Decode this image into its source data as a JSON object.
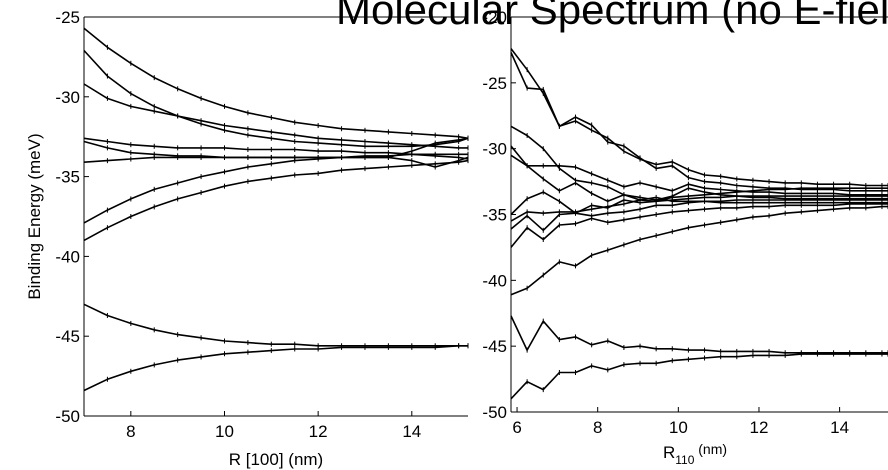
{
  "title": "Molecular Spectrum (no E-field)",
  "chart_data": [
    {
      "type": "line",
      "xlabel": "R [100] (nm)",
      "ylabel": "Binding Energy (meV)",
      "xlim": [
        7,
        15.2
      ],
      "ylim": [
        -50,
        -25
      ],
      "xticks": [
        8,
        10,
        12,
        14
      ],
      "yticks": [
        -25,
        -30,
        -35,
        -40,
        -45,
        -50
      ],
      "grid": false,
      "x": [
        7.0,
        7.5,
        8.0,
        8.5,
        9.0,
        9.5,
        10.0,
        10.5,
        11.0,
        11.5,
        12.0,
        12.5,
        13.0,
        13.5,
        14.0,
        14.5,
        15.0,
        15.2
      ],
      "series": [
        {
          "values": [
            -25.7,
            -26.9,
            -27.9,
            -28.8,
            -29.5,
            -30.1,
            -30.6,
            -31.0,
            -31.3,
            -31.6,
            -31.8,
            -32.0,
            -32.1,
            -32.2,
            -32.3,
            -32.4,
            -32.5,
            -32.6
          ]
        },
        {
          "values": [
            -27.1,
            -28.7,
            -29.8,
            -30.6,
            -31.2,
            -31.7,
            -32.1,
            -32.4,
            -32.6,
            -32.8,
            -32.9,
            -33.0,
            -33.1,
            -33.1,
            -33.1,
            -33.0,
            -32.8,
            -32.6
          ]
        },
        {
          "values": [
            -29.2,
            -30.1,
            -30.6,
            -30.9,
            -31.2,
            -31.5,
            -31.8,
            -32.0,
            -32.2,
            -32.4,
            -32.6,
            -32.7,
            -32.8,
            -32.9,
            -33.0,
            -33.1,
            -33.2,
            -33.2
          ]
        },
        {
          "values": [
            -32.6,
            -32.8,
            -33.0,
            -33.1,
            -33.2,
            -33.2,
            -33.2,
            -33.3,
            -33.3,
            -33.3,
            -33.4,
            -33.4,
            -33.5,
            -33.5,
            -33.6,
            -33.7,
            -33.8,
            -33.9
          ]
        },
        {
          "values": [
            -32.8,
            -33.2,
            -33.5,
            -33.6,
            -33.7,
            -33.7,
            -33.8,
            -33.8,
            -33.8,
            -33.8,
            -33.8,
            -33.8,
            -33.8,
            -33.8,
            -33.4,
            -32.9,
            -32.7,
            -32.6
          ]
        },
        {
          "values": [
            -34.1,
            -34.0,
            -33.9,
            -33.8,
            -33.8,
            -33.8,
            -33.8,
            -33.8,
            -33.8,
            -33.8,
            -33.8,
            -33.8,
            -33.8,
            -33.8,
            -34.0,
            -34.4,
            -34.0,
            -33.8
          ]
        },
        {
          "values": [
            -37.9,
            -37.1,
            -36.4,
            -35.8,
            -35.4,
            -35.0,
            -34.7,
            -34.4,
            -34.2,
            -34.0,
            -33.9,
            -33.8,
            -33.7,
            -33.7,
            -33.6,
            -33.6,
            -33.6,
            -33.6
          ]
        },
        {
          "values": [
            -39.0,
            -38.2,
            -37.5,
            -36.9,
            -36.4,
            -36.0,
            -35.6,
            -35.3,
            -35.1,
            -34.9,
            -34.8,
            -34.6,
            -34.5,
            -34.4,
            -34.3,
            -34.2,
            -34.1,
            -34.0
          ]
        },
        {
          "values": [
            -43.0,
            -43.7,
            -44.2,
            -44.6,
            -44.9,
            -45.1,
            -45.3,
            -45.4,
            -45.5,
            -45.5,
            -45.6,
            -45.6,
            -45.6,
            -45.6,
            -45.6,
            -45.6,
            -45.6,
            -45.6
          ]
        },
        {
          "values": [
            -48.4,
            -47.7,
            -47.2,
            -46.8,
            -46.5,
            -46.3,
            -46.1,
            -46.0,
            -45.9,
            -45.8,
            -45.8,
            -45.7,
            -45.7,
            -45.7,
            -45.7,
            -45.7,
            -45.6,
            -45.6
          ]
        }
      ]
    },
    {
      "type": "line",
      "xlabel": "R",
      "xlabel_sub": "110",
      "xlabel_suffix": " (nm)",
      "ylabel": "",
      "xlim": [
        5.85,
        15.2
      ],
      "ylim": [
        -50,
        -20
      ],
      "xticks": [
        6,
        8,
        10,
        12,
        14
      ],
      "yticks": [
        -20,
        -25,
        -30,
        -35,
        -40,
        -45,
        -50
      ],
      "grid": false,
      "x": [
        5.85,
        6.25,
        6.65,
        7.05,
        7.45,
        7.85,
        8.25,
        8.65,
        9.05,
        9.45,
        9.85,
        10.25,
        10.65,
        11.05,
        11.45,
        11.85,
        12.25,
        12.65,
        13.05,
        13.45,
        13.85,
        14.25,
        14.65,
        15.05,
        15.2
      ],
      "series": [
        {
          "values": [
            -22.4,
            -24.0,
            -25.8,
            -28.3,
            -27.9,
            -28.6,
            -29.2,
            -30.2,
            -30.8,
            -31.2,
            -31.0,
            -31.6,
            -32.0,
            -32.1,
            -32.3,
            -32.4,
            -32.5,
            -32.6,
            -32.6,
            -32.7,
            -32.7,
            -32.7,
            -32.8,
            -32.8,
            -32.8
          ]
        },
        {
          "values": [
            -22.7,
            -25.4,
            -25.5,
            -28.3,
            -27.6,
            -28.2,
            -29.5,
            -29.8,
            -30.7,
            -31.5,
            -31.3,
            -32.2,
            -32.5,
            -32.6,
            -32.8,
            -32.9,
            -33.0,
            -33.0,
            -33.1,
            -33.1,
            -33.1,
            -33.2,
            -33.2,
            -33.2,
            -33.2
          ]
        },
        {
          "values": [
            -28.3,
            -29.0,
            -30.0,
            -31.5,
            -32.4,
            -32.6,
            -32.9,
            -33.5,
            -33.7,
            -33.9,
            -33.6,
            -33.0,
            -33.3,
            -33.5,
            -33.6,
            -33.7,
            -33.7,
            -33.8,
            -33.8,
            -33.8,
            -33.8,
            -33.8,
            -33.8,
            -33.8,
            -33.8
          ]
        },
        {
          "values": [
            -29.8,
            -31.3,
            -31.3,
            -31.3,
            -31.4,
            -31.9,
            -32.4,
            -32.9,
            -32.6,
            -32.9,
            -33.2,
            -32.7,
            -33.0,
            -33.1,
            -33.2,
            -33.3,
            -33.3,
            -33.4,
            -33.4,
            -33.4,
            -33.4,
            -33.5,
            -33.5,
            -33.5,
            -33.5
          ]
        },
        {
          "values": [
            -30.5,
            -31.3,
            -32.3,
            -33.2,
            -32.6,
            -33.4,
            -34.0,
            -33.5,
            -33.9,
            -33.7,
            -34.0,
            -34.0,
            -34.0,
            -34.1,
            -34.1,
            -34.1,
            -34.1,
            -34.1,
            -34.1,
            -34.1,
            -34.1,
            -34.1,
            -34.1,
            -34.1,
            -34.1
          ]
        },
        {
          "values": [
            -35.0,
            -33.8,
            -33.3,
            -34.0,
            -34.9,
            -34.3,
            -34.5,
            -33.9,
            -34.1,
            -34.0,
            -33.7,
            -33.6,
            -33.5,
            -33.4,
            -33.3,
            -33.2,
            -33.1,
            -33.1,
            -33.0,
            -33.0,
            -33.0,
            -33.0,
            -33.0,
            -33.0,
            -33.0
          ]
        },
        {
          "values": [
            -35.5,
            -34.8,
            -34.9,
            -34.8,
            -34.8,
            -34.6,
            -34.4,
            -34.2,
            -33.9,
            -34.0,
            -33.9,
            -33.8,
            -33.7,
            -33.7,
            -33.6,
            -33.6,
            -33.6,
            -33.6,
            -33.6,
            -33.6,
            -33.6,
            -33.6,
            -33.6,
            -33.6,
            -33.6
          ]
        },
        {
          "values": [
            -36.1,
            -35.1,
            -36.2,
            -35.0,
            -34.9,
            -35.1,
            -34.9,
            -34.8,
            -34.6,
            -34.3,
            -34.3,
            -34.1,
            -34.0,
            -34.0,
            -33.9,
            -33.9,
            -33.9,
            -33.9,
            -33.9,
            -33.9,
            -33.9,
            -33.9,
            -33.9,
            -33.9,
            -33.9
          ]
        },
        {
          "values": [
            -37.5,
            -36.0,
            -36.9,
            -35.8,
            -35.7,
            -35.3,
            -35.6,
            -35.4,
            -35.2,
            -35.0,
            -34.8,
            -34.7,
            -34.6,
            -34.5,
            -34.5,
            -34.4,
            -34.4,
            -34.3,
            -34.3,
            -34.3,
            -34.3,
            -34.2,
            -34.2,
            -34.2,
            -34.2
          ]
        },
        {
          "values": [
            -41.1,
            -40.6,
            -39.6,
            -38.6,
            -38.9,
            -38.1,
            -37.7,
            -37.3,
            -36.9,
            -36.6,
            -36.3,
            -36.0,
            -35.8,
            -35.6,
            -35.4,
            -35.2,
            -35.1,
            -34.9,
            -34.8,
            -34.7,
            -34.6,
            -34.5,
            -34.5,
            -34.4,
            -34.4
          ]
        },
        {
          "values": [
            -42.7,
            -45.3,
            -43.1,
            -44.5,
            -44.3,
            -44.9,
            -44.6,
            -45.1,
            -45.0,
            -45.2,
            -45.2,
            -45.3,
            -45.3,
            -45.4,
            -45.4,
            -45.4,
            -45.4,
            -45.5,
            -45.5,
            -45.5,
            -45.5,
            -45.5,
            -45.5,
            -45.5,
            -45.5
          ]
        },
        {
          "values": [
            -49.0,
            -47.7,
            -48.3,
            -47.0,
            -47.0,
            -46.5,
            -46.8,
            -46.4,
            -46.3,
            -46.3,
            -46.1,
            -46.0,
            -45.9,
            -45.8,
            -45.8,
            -45.7,
            -45.7,
            -45.7,
            -45.6,
            -45.6,
            -45.6,
            -45.6,
            -45.6,
            -45.6,
            -45.6
          ]
        }
      ]
    }
  ]
}
